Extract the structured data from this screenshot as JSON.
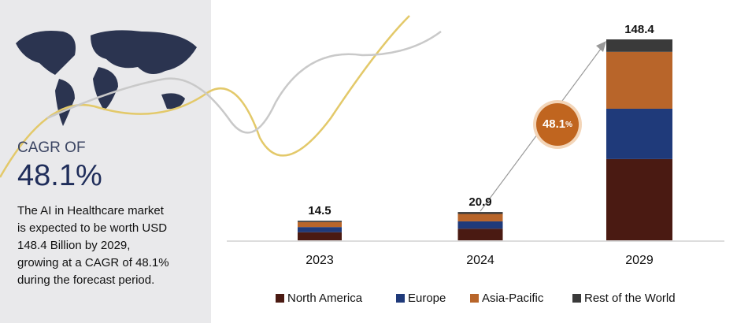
{
  "panel": {
    "kicker": "CAGR OF",
    "headline": "48.1%",
    "description": [
      "The AI in Healthcare market",
      "is expected to be worth USD",
      "148.4 Billion by 2029,",
      "growing at a CAGR of 48.1%",
      "during the forecast period."
    ]
  },
  "chart_data": {
    "type": "stacked-bar",
    "categories": [
      "2023",
      "2024",
      "2029"
    ],
    "series": [
      {
        "name": "North America",
        "color": "#4a1a12",
        "values": [
          6.0,
          8.6,
          60.0
        ]
      },
      {
        "name": "Europe",
        "color": "#1f3a7a",
        "values": [
          3.8,
          5.4,
          37.2
        ]
      },
      {
        "name": "Asia-Pacific",
        "color": "#b8652a",
        "values": [
          3.7,
          5.5,
          42.0
        ]
      },
      {
        "name": "Rest of the World",
        "color": "#3a3a3a",
        "values": [
          1.0,
          1.4,
          9.2
        ]
      }
    ],
    "totals": [
      14.5,
      20.9,
      148.4
    ],
    "badge": {
      "value": "48.1",
      "unit": "%"
    },
    "legend": "bottom"
  }
}
